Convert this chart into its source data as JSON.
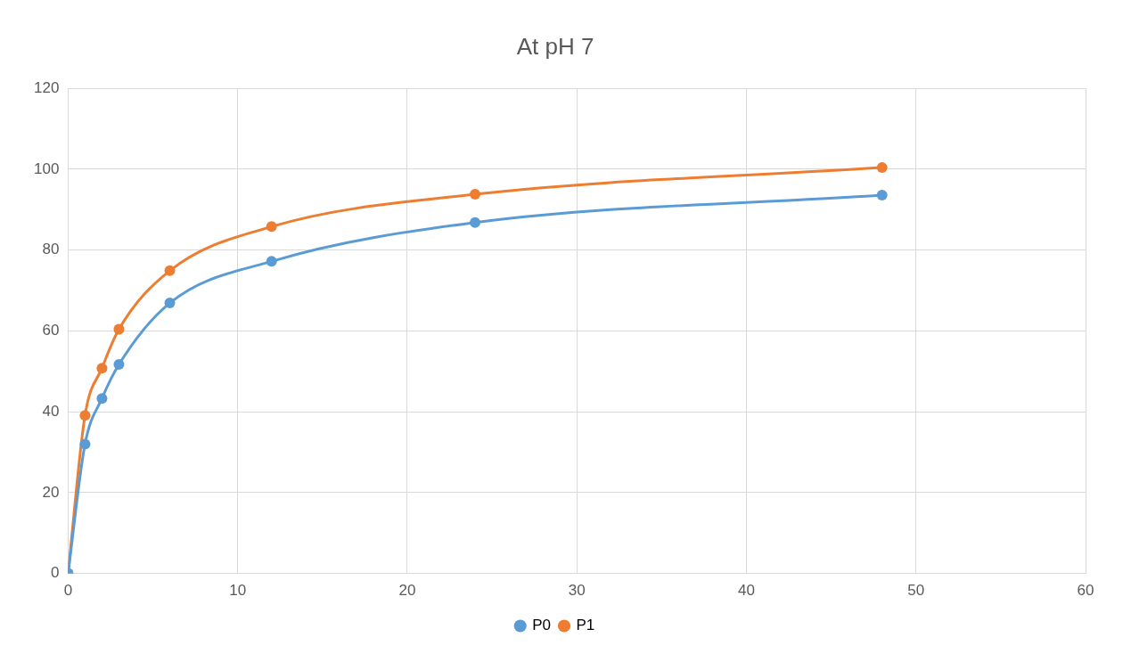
{
  "chart_data": {
    "type": "line",
    "title": "At pH 7",
    "xlim": [
      0,
      60
    ],
    "xticks": [
      0,
      10,
      20,
      30,
      40,
      50,
      60
    ],
    "ylim": [
      0,
      120
    ],
    "yticks": [
      0,
      20,
      40,
      60,
      80,
      100,
      120
    ],
    "grid": true,
    "legend": "bottom",
    "marker": "circle",
    "line_style": "solid",
    "series": [
      {
        "name": "P0",
        "color": "#5b9bd5",
        "x": [
          0,
          1,
          2,
          3,
          6,
          12,
          24,
          48
        ],
        "values": [
          0,
          32,
          43.3,
          51.7,
          66.9,
          77.2,
          86.8,
          93.6
        ]
      },
      {
        "name": "P1",
        "color": "#ed7d31",
        "x": [
          0,
          1,
          2,
          3,
          6,
          12,
          24,
          48
        ],
        "values": [
          0,
          39.1,
          50.8,
          60.4,
          74.9,
          85.8,
          93.8,
          100.4
        ]
      }
    ]
  }
}
